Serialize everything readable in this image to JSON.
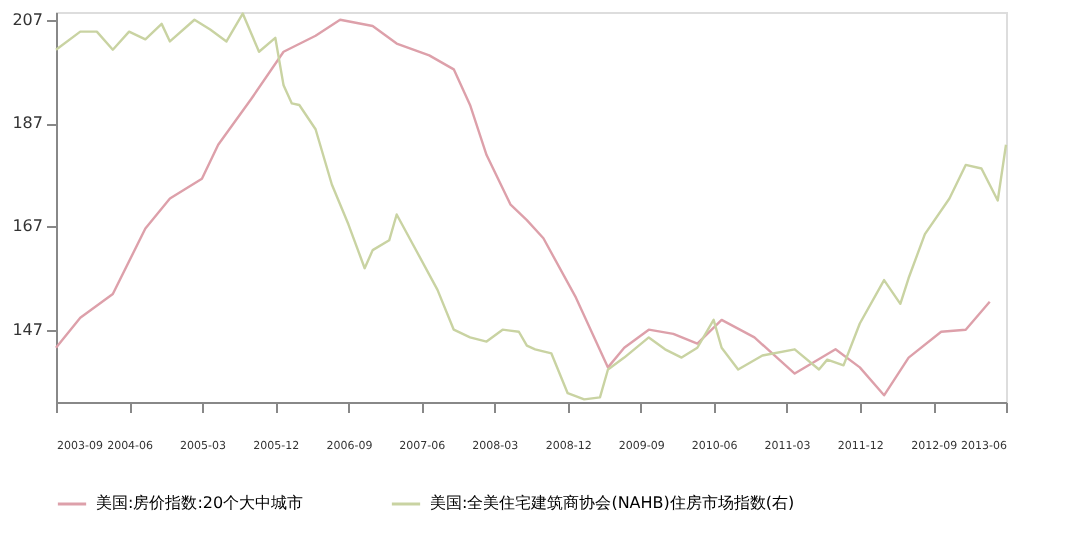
{
  "chart_data": {
    "type": "line",
    "xlim": [
      "2003-09",
      "2013-06"
    ],
    "xticks": [
      "2003-09",
      "2004-06",
      "2005-03",
      "2005-12",
      "2006-09",
      "2007-06",
      "2008-03",
      "2008-12",
      "2009-09",
      "2010-06",
      "2011-03",
      "2011-12",
      "2012-09",
      "2013-06"
    ],
    "ylim": [
      133,
      208.5
    ],
    "yticks": [
      147,
      167,
      187,
      207
    ],
    "grid": false,
    "legend": "bottom",
    "marker": "none",
    "line_style": "solid",
    "series": [
      {
        "name": "美国:房价指数:20个大中城市",
        "color": "#dda0aa",
        "x": [
          "2003-09",
          "2003-12",
          "2004-04",
          "2004-08",
          "2004-11",
          "2005-03",
          "2005-05",
          "2005-09",
          "2006-01",
          "2006-05",
          "2006-08",
          "2006-12",
          "2007-03",
          "2007-07",
          "2007-10",
          "2007-12",
          "2008-02",
          "2008-05",
          "2008-07",
          "2008-09",
          "2009-01",
          "2009-05",
          "2009-07",
          "2009-10",
          "2010-01",
          "2010-04",
          "2010-07",
          "2010-11",
          "2011-04",
          "2011-09",
          "2011-12",
          "2012-03",
          "2012-06",
          "2012-10",
          "2013-01",
          "2013-04"
        ],
        "values": [
          143.5,
          149.3,
          153.9,
          166.6,
          172.4,
          176.2,
          182.8,
          191.6,
          200.8,
          203.9,
          207,
          205.8,
          202.4,
          200.1,
          197.4,
          190.5,
          180.8,
          171.2,
          168.2,
          164.7,
          153.2,
          139.7,
          143.5,
          147,
          146.2,
          144.3,
          148.9,
          145.5,
          138.5,
          143.2,
          139.7,
          134.3,
          141.6,
          146.6,
          147,
          152.4
        ]
      },
      {
        "name": "美国:全美住宅建筑商协会(NAHB)住房市场指数(右)",
        "color": "#c9d3a2",
        "x": [
          "2003-09",
          "2003-12",
          "2004-02",
          "2004-04",
          "2004-06",
          "2004-08",
          "2004-10",
          "2004-11",
          "2005-02",
          "2005-04",
          "2005-06",
          "2005-08",
          "2005-10",
          "2005-12",
          "2006-01",
          "2006-02",
          "2006-03",
          "2006-05",
          "2006-07",
          "2006-09",
          "2006-11",
          "2006-12",
          "2007-02",
          "2007-03",
          "2007-05",
          "2007-08",
          "2007-10",
          "2007-12",
          "2008-02",
          "2008-04",
          "2008-06",
          "2008-07",
          "2008-08",
          "2008-10",
          "2008-12",
          "2009-02",
          "2009-04",
          "2009-05",
          "2009-07",
          "2009-10",
          "2009-12",
          "2010-02",
          "2010-04",
          "2010-06",
          "2010-07",
          "2010-09",
          "2010-12",
          "2011-04",
          "2011-07",
          "2011-08",
          "2011-10",
          "2011-12",
          "2012-03",
          "2012-05",
          "2012-06",
          "2012-08",
          "2012-11",
          "2013-01",
          "2013-03",
          "2013-05",
          "2013-06"
        ],
        "values": [
          201.2,
          204.7,
          204.7,
          201.2,
          204.7,
          203.2,
          206.2,
          202.8,
          207,
          205.1,
          202.8,
          208.2,
          200.8,
          203.5,
          194.3,
          190.8,
          190.5,
          185.8,
          175.1,
          167.4,
          158.9,
          162.4,
          164.3,
          169.3,
          163.5,
          154.7,
          147,
          145.5,
          144.7,
          147,
          146.6,
          143.9,
          143.2,
          142.4,
          134.7,
          133.5,
          133.9,
          139.3,
          141.6,
          145.5,
          143.2,
          141.6,
          143.5,
          148.9,
          143.5,
          139.3,
          142,
          143.2,
          139.3,
          141.2,
          140.1,
          148.2,
          156.6,
          152,
          157,
          165.5,
          172.4,
          178.9,
          178.2,
          172,
          182.8
        ]
      }
    ]
  }
}
